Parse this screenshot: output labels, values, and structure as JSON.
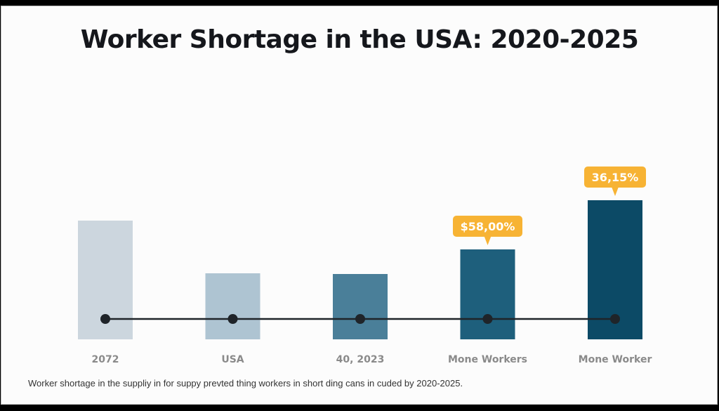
{
  "title": "Worker Shortage in the USA: 2020-2025",
  "caption": "Worker shortage in the suppliy in for suppy prevted thing workers in short ding cans in cuded by 2020-2025.",
  "chart_data": {
    "type": "bar",
    "title": "Worker Shortage in the USA: 2020-2025",
    "xlabel": "",
    "ylabel": "",
    "categories": [
      "2072",
      "USA",
      "40, 2023",
      "Mone Workers",
      "Mone Worker"
    ],
    "values": [
      169,
      94,
      93,
      128,
      198
    ],
    "value_units": "relative (no axis shown)",
    "ylim": [
      0,
      210
    ],
    "colors": [
      "#ccd6de",
      "#aec4d2",
      "#4a7f99",
      "#1e5f7c",
      "#0c4a66"
    ],
    "grid": false,
    "legend": "none",
    "overlay_line": {
      "type": "line",
      "values": [
        1,
        1,
        1,
        1,
        1
      ],
      "color": "#1f2429",
      "description": "flat connector line with point markers at every bar"
    },
    "annotations": [
      {
        "category": "Mone Workers",
        "text": "$58,00%",
        "color": "#f7b334"
      },
      {
        "category": "Mone Worker",
        "text": "36,15%",
        "color": "#f7b334"
      }
    ]
  }
}
